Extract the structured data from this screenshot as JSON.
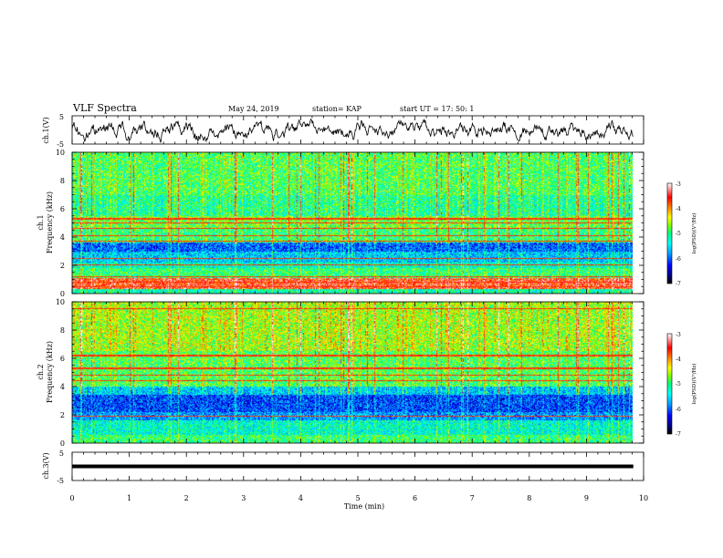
{
  "header": {
    "title": "VLF Spectra",
    "date": "May 24, 2019",
    "station": "station= KAP",
    "start_time": "start  UT =   17: 50: 1"
  },
  "colors": {
    "trace": "#000000",
    "colormap": [
      "#000080",
      "#0000ff",
      "#00a0ff",
      "#00ffff",
      "#00ff80",
      "#80ff00",
      "#ffff00",
      "#ff8000",
      "#ff0000",
      "#ff9999",
      "#ffffff"
    ]
  },
  "chart_data": [
    {
      "type": "line",
      "ylabel": "ch.1(V)",
      "ylim": [
        -5,
        5
      ],
      "yticks": [
        "5",
        "-5"
      ],
      "xlim": [
        0,
        10
      ],
      "trace_end_min": 9.82,
      "trace_mean_V": -0.3,
      "trace_amplitude_V": 4.5
    },
    {
      "type": "heatmap",
      "ylabel_line1": "ch.1",
      "ylabel_line2": "Frequency  (kHz)",
      "ylim": [
        0,
        10
      ],
      "yticks": [
        "0",
        "2",
        "4",
        "6",
        "8",
        "10"
      ],
      "xlim": [
        0,
        10
      ],
      "data_end_min": 9.82,
      "colorbar": {
        "label": "log(PSD)(V²/Hz)",
        "range": [
          -7,
          -3
        ],
        "ticks": [
          "-3",
          "-4",
          "-5",
          "-6",
          "-7"
        ]
      },
      "bands": [
        {
          "f0": 0.0,
          "f1": 0.3,
          "level": -5.2
        },
        {
          "f0": 0.3,
          "f1": 1.1,
          "level": -3.6
        },
        {
          "f0": 1.1,
          "f1": 1.8,
          "level": -5.0
        },
        {
          "f0": 1.8,
          "f1": 2.2,
          "level": -5.3
        },
        {
          "f0": 2.2,
          "f1": 3.0,
          "level": -5.6
        },
        {
          "f0": 3.0,
          "f1": 3.6,
          "level": -6.0
        },
        {
          "f0": 3.6,
          "f1": 4.6,
          "level": -5.0
        },
        {
          "f0": 4.6,
          "f1": 5.5,
          "level": -4.8
        },
        {
          "f0": 5.5,
          "f1": 7.0,
          "level": -5.1
        },
        {
          "f0": 7.0,
          "f1": 10.0,
          "level": -4.9
        }
      ],
      "lines_kHz": [
        0.5,
        0.8,
        1.2,
        2.05,
        2.5,
        3.7,
        4.1,
        4.6,
        5.0,
        5.3
      ]
    },
    {
      "type": "heatmap",
      "ylabel_line1": "ch.2",
      "ylabel_line2": "Frequency  (kHz)",
      "ylim": [
        0,
        10
      ],
      "yticks": [
        "0",
        "2",
        "4",
        "6",
        "8",
        "10"
      ],
      "xlim": [
        0,
        10
      ],
      "data_end_min": 9.82,
      "colorbar": {
        "label": "log(PSD)(V²/Hz)",
        "range": [
          -7,
          -3
        ],
        "ticks": [
          "-3",
          "-4",
          "-5",
          "-6",
          "-7"
        ]
      },
      "bands": [
        {
          "f0": 0.0,
          "f1": 0.6,
          "level": -5.0
        },
        {
          "f0": 0.6,
          "f1": 1.6,
          "level": -5.3
        },
        {
          "f0": 1.6,
          "f1": 2.2,
          "level": -5.8
        },
        {
          "f0": 2.2,
          "f1": 3.4,
          "level": -6.1
        },
        {
          "f0": 3.4,
          "f1": 4.0,
          "level": -5.6
        },
        {
          "f0": 4.0,
          "f1": 6.5,
          "level": -4.9
        },
        {
          "f0": 6.5,
          "f1": 10.0,
          "level": -4.6
        }
      ],
      "lines_kHz": [
        1.9,
        4.4,
        4.8,
        5.3,
        6.2,
        9.5
      ]
    },
    {
      "type": "line",
      "ylabel": "ch.3(V)",
      "ylim": [
        -5,
        5
      ],
      "yticks": [
        "5",
        "-5"
      ],
      "xlim": [
        0,
        10
      ],
      "xlabel": "Time  (min)",
      "xticks": [
        "0",
        "1",
        "2",
        "3",
        "4",
        "5",
        "6",
        "7",
        "8",
        "9",
        "10"
      ],
      "trace_end_min": 9.82,
      "trace_level_V": 0.0
    }
  ]
}
